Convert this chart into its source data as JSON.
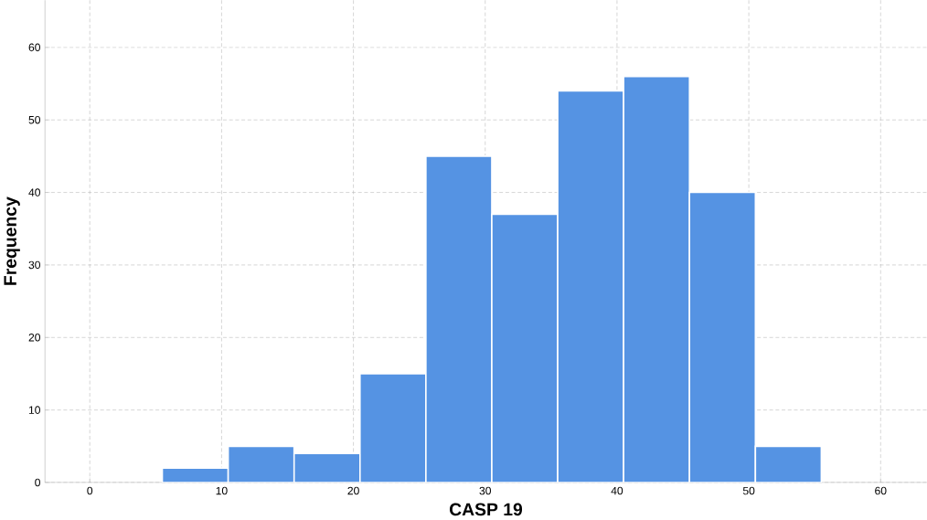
{
  "chart_data": {
    "type": "histogram",
    "xlabel": "CASP 19",
    "ylabel": "Frequency",
    "bins": [
      5.5,
      10.5,
      15.5,
      20.5,
      25.5,
      30.5,
      35.5,
      40.5,
      45.5,
      50.5,
      55.5
    ],
    "values": [
      2,
      5,
      4,
      15,
      45,
      37,
      54,
      56,
      40,
      5
    ],
    "color": "#5593e3",
    "xlim": [
      -3.4,
      63.5
    ],
    "ylim": [
      0,
      66.5
    ],
    "xticks": [
      0,
      10,
      20,
      30,
      40,
      50,
      60
    ],
    "yticks": [
      0,
      10,
      20,
      30,
      40,
      50,
      60
    ],
    "grid": true
  }
}
